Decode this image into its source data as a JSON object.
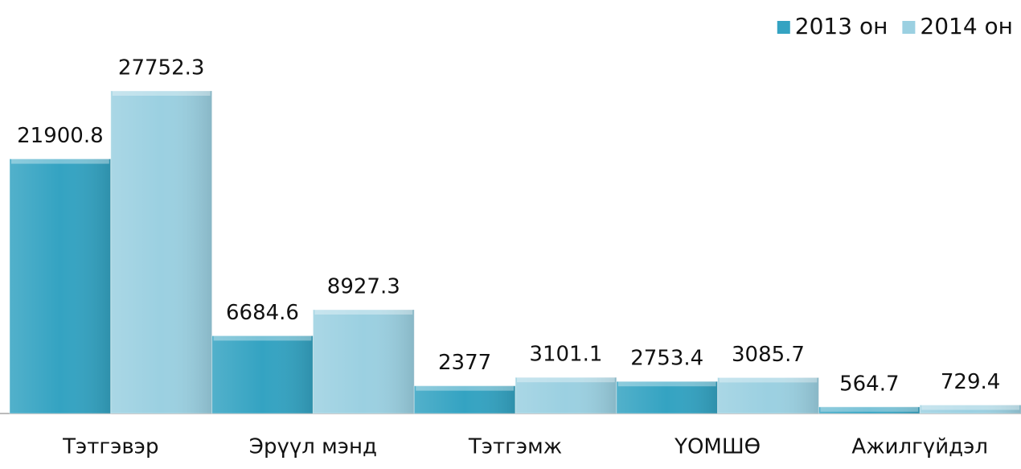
{
  "chart_data": {
    "type": "bar",
    "categories": [
      "Тэтгэвэр",
      "Эрүүл мэнд",
      "Тэтгэмж",
      "ҮОМШӨ",
      "Ажилгүйдэл"
    ],
    "series": [
      {
        "name": "2013 он",
        "color": "#34a3c2",
        "values": [
          21900.8,
          6684.6,
          2377,
          2753.4,
          564.7
        ]
      },
      {
        "name": "2014 он",
        "color": "#9bd0e1",
        "values": [
          27752.3,
          8927.3,
          3101.1,
          3085.7,
          729.4
        ]
      }
    ],
    "legend": "top-right"
  }
}
